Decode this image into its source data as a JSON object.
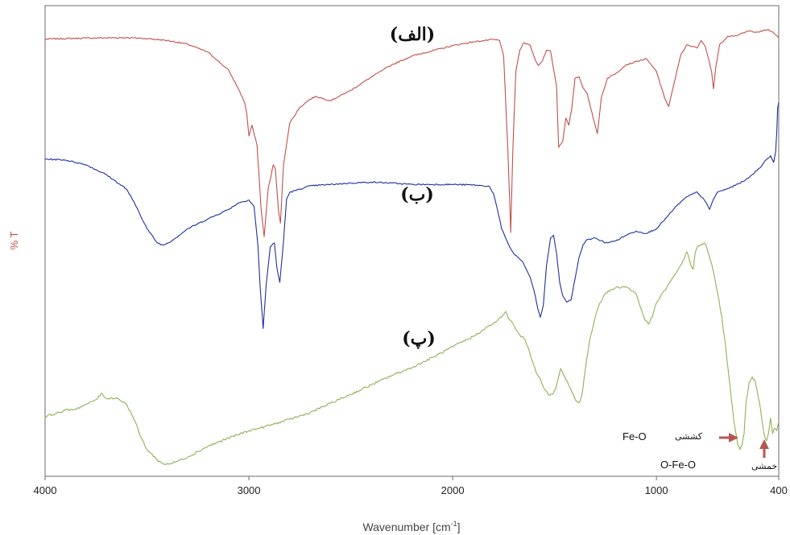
{
  "chart_data": {
    "type": "line",
    "title": "",
    "xlabel": "Wavenumber [cm",
    "xlabel_sup": "-1",
    "xlabel_end": "]",
    "ylabel": "% T",
    "xlim": [
      4000,
      400
    ],
    "ylim": [
      0,
      100
    ],
    "x_reversed": true,
    "grid": false,
    "x_ticks": [
      {
        "value": 4000,
        "label": "4000"
      },
      {
        "value": 3000,
        "label": "3000"
      },
      {
        "value": 2000,
        "label": "2000"
      },
      {
        "value": 1000,
        "label": "1000"
      },
      {
        "value": 400,
        "label": "400"
      }
    ],
    "series": [
      {
        "tag": "(الف)",
        "color": "#c0504d",
        "points": [
          [
            4000,
            92.9
          ],
          [
            3800,
            93.1
          ],
          [
            3600,
            93.2
          ],
          [
            3500,
            93.0
          ],
          [
            3400,
            92.6
          ],
          [
            3300,
            91.8
          ],
          [
            3200,
            90.1
          ],
          [
            3100,
            86.3
          ],
          [
            3050,
            82.2
          ],
          [
            3020,
            79.3
          ],
          [
            3010,
            76.9
          ],
          [
            3000,
            72.3
          ],
          [
            2985,
            74.6
          ],
          [
            2960,
            70.3
          ],
          [
            2940,
            56.8
          ],
          [
            2925,
            50.9
          ],
          [
            2905,
            61.2
          ],
          [
            2880,
            66.2
          ],
          [
            2870,
            65.3
          ],
          [
            2855,
            56.5
          ],
          [
            2845,
            53.8
          ],
          [
            2830,
            66.2
          ],
          [
            2800,
            75.0
          ],
          [
            2750,
            78.4
          ],
          [
            2700,
            80.1
          ],
          [
            2670,
            80.7
          ],
          [
            2600,
            79.8
          ],
          [
            2500,
            82.0
          ],
          [
            2400,
            84.8
          ],
          [
            2300,
            87.4
          ],
          [
            2200,
            89.3
          ],
          [
            2000,
            91.5
          ],
          [
            1900,
            92.3
          ],
          [
            1800,
            92.8
          ],
          [
            1770,
            92.6
          ],
          [
            1750,
            89.3
          ],
          [
            1730,
            70.3
          ],
          [
            1715,
            51.8
          ],
          [
            1705,
            69.0
          ],
          [
            1690,
            86.1
          ],
          [
            1670,
            90.6
          ],
          [
            1650,
            92.1
          ],
          [
            1620,
            91.6
          ],
          [
            1600,
            89.1
          ],
          [
            1580,
            87.3
          ],
          [
            1560,
            88.2
          ],
          [
            1540,
            90.5
          ],
          [
            1520,
            90.4
          ],
          [
            1490,
            82.8
          ],
          [
            1480,
            69.9
          ],
          [
            1460,
            71.2
          ],
          [
            1445,
            76.1
          ],
          [
            1430,
            74.6
          ],
          [
            1415,
            78.2
          ],
          [
            1400,
            84.5
          ],
          [
            1380,
            84.9
          ],
          [
            1360,
            82.5
          ],
          [
            1340,
            81.4
          ],
          [
            1310,
            76.0
          ],
          [
            1290,
            72.8
          ],
          [
            1270,
            80.6
          ],
          [
            1240,
            84.6
          ],
          [
            1200,
            85.6
          ],
          [
            1150,
            87.4
          ],
          [
            1100,
            88.1
          ],
          [
            1050,
            88.7
          ],
          [
            1000,
            86.0
          ],
          [
            960,
            80.4
          ],
          [
            940,
            78.6
          ],
          [
            920,
            82.3
          ],
          [
            880,
            89.6
          ],
          [
            850,
            91.7
          ],
          [
            800,
            91.0
          ],
          [
            780,
            92.6
          ],
          [
            760,
            91.2
          ],
          [
            740,
            88.0
          ],
          [
            730,
            86.1
          ],
          [
            720,
            82.3
          ],
          [
            710,
            86.6
          ],
          [
            690,
            91.7
          ],
          [
            650,
            93.5
          ],
          [
            600,
            93.7
          ],
          [
            550,
            94.6
          ],
          [
            500,
            94.4
          ],
          [
            450,
            94.9
          ],
          [
            420,
            94.0
          ],
          [
            400,
            93.2
          ]
        ]
      },
      {
        "tag": "(ب)",
        "color": "#1f2f9f",
        "points": [
          [
            4000,
            67.4
          ],
          [
            3900,
            67.2
          ],
          [
            3800,
            66.2
          ],
          [
            3700,
            64.1
          ],
          [
            3600,
            61.0
          ],
          [
            3550,
            57.1
          ],
          [
            3500,
            52.6
          ],
          [
            3450,
            49.6
          ],
          [
            3420,
            49.1
          ],
          [
            3380,
            50.0
          ],
          [
            3300,
            52.6
          ],
          [
            3200,
            54.7
          ],
          [
            3100,
            56.7
          ],
          [
            3050,
            58.1
          ],
          [
            3000,
            58.7
          ],
          [
            2975,
            57.4
          ],
          [
            2955,
            48.7
          ],
          [
            2945,
            40.4
          ],
          [
            2930,
            31.4
          ],
          [
            2915,
            40.8
          ],
          [
            2895,
            48.7
          ],
          [
            2875,
            49.6
          ],
          [
            2862,
            44.1
          ],
          [
            2848,
            41.2
          ],
          [
            2830,
            50.0
          ],
          [
            2815,
            58.9
          ],
          [
            2800,
            60.3
          ],
          [
            2700,
            61.7
          ],
          [
            2600,
            62.0
          ],
          [
            2500,
            62.3
          ],
          [
            2400,
            62.5
          ],
          [
            2300,
            62.3
          ],
          [
            2200,
            62.0
          ],
          [
            2000,
            62.0
          ],
          [
            1900,
            61.9
          ],
          [
            1820,
            61.6
          ],
          [
            1800,
            60.1
          ],
          [
            1780,
            56.6
          ],
          [
            1760,
            52.6
          ],
          [
            1740,
            50.6
          ],
          [
            1720,
            48.7
          ],
          [
            1700,
            47.3
          ],
          [
            1680,
            46.5
          ],
          [
            1660,
            45.8
          ],
          [
            1640,
            44.1
          ],
          [
            1620,
            42.3
          ],
          [
            1600,
            39.3
          ],
          [
            1580,
            35.2
          ],
          [
            1570,
            33.8
          ],
          [
            1555,
            36.3
          ],
          [
            1540,
            44.6
          ],
          [
            1520,
            50.6
          ],
          [
            1505,
            51.2
          ],
          [
            1490,
            47.3
          ],
          [
            1475,
            41.2
          ],
          [
            1460,
            38.4
          ],
          [
            1440,
            37.0
          ],
          [
            1420,
            37.4
          ],
          [
            1400,
            41.8
          ],
          [
            1380,
            46.5
          ],
          [
            1360,
            49.2
          ],
          [
            1340,
            50.3
          ],
          [
            1300,
            50.6
          ],
          [
            1250,
            49.6
          ],
          [
            1200,
            50.0
          ],
          [
            1150,
            51.2
          ],
          [
            1100,
            52.1
          ],
          [
            1050,
            51.6
          ],
          [
            1000,
            52.6
          ],
          [
            950,
            55.0
          ],
          [
            900,
            57.5
          ],
          [
            850,
            59.4
          ],
          [
            800,
            60.4
          ],
          [
            760,
            58.4
          ],
          [
            740,
            56.7
          ],
          [
            720,
            58.9
          ],
          [
            700,
            60.4
          ],
          [
            650,
            61.1
          ],
          [
            600,
            62.1
          ],
          [
            550,
            63.3
          ],
          [
            500,
            65.3
          ],
          [
            480,
            66.2
          ],
          [
            460,
            67.3
          ],
          [
            440,
            68.1
          ],
          [
            425,
            66.7
          ],
          [
            415,
            69.0
          ],
          [
            410,
            72.8
          ],
          [
            405,
            78.3
          ],
          [
            400,
            79.5
          ]
        ]
      },
      {
        "tag": "(پ)",
        "color": "#8fb155",
        "points": [
          [
            4000,
            12.7
          ],
          [
            3950,
            13.3
          ],
          [
            3900,
            14.0
          ],
          [
            3850,
            14.3
          ],
          [
            3800,
            15.2
          ],
          [
            3750,
            16.3
          ],
          [
            3720,
            17.6
          ],
          [
            3700,
            16.5
          ],
          [
            3650,
            16.7
          ],
          [
            3600,
            15.3
          ],
          [
            3560,
            11.8
          ],
          [
            3530,
            8.3
          ],
          [
            3500,
            5.7
          ],
          [
            3450,
            3.5
          ],
          [
            3420,
            2.6
          ],
          [
            3380,
            2.7
          ],
          [
            3300,
            4.1
          ],
          [
            3200,
            6.4
          ],
          [
            3100,
            8.1
          ],
          [
            3000,
            9.7
          ],
          [
            2950,
            10.2
          ],
          [
            2925,
            10.5
          ],
          [
            2900,
            10.8
          ],
          [
            2800,
            12.1
          ],
          [
            2700,
            13.5
          ],
          [
            2600,
            15.5
          ],
          [
            2500,
            17.4
          ],
          [
            2400,
            19.4
          ],
          [
            2300,
            21.4
          ],
          [
            2200,
            23.1
          ],
          [
            2100,
            25.2
          ],
          [
            2000,
            27.5
          ],
          [
            1900,
            29.7
          ],
          [
            1850,
            31.1
          ],
          [
            1800,
            32.5
          ],
          [
            1780,
            33.1
          ],
          [
            1760,
            33.8
          ],
          [
            1750,
            34.3
          ],
          [
            1740,
            35.0
          ],
          [
            1730,
            34.0
          ],
          [
            1720,
            33.2
          ],
          [
            1710,
            32.8
          ],
          [
            1690,
            31.2
          ],
          [
            1670,
            30.0
          ],
          [
            1650,
            29.3
          ],
          [
            1630,
            27.4
          ],
          [
            1610,
            24.6
          ],
          [
            1590,
            22.0
          ],
          [
            1570,
            20.8
          ],
          [
            1550,
            18.5
          ],
          [
            1530,
            17.3
          ],
          [
            1510,
            17.4
          ],
          [
            1495,
            18.5
          ],
          [
            1480,
            21.2
          ],
          [
            1470,
            22.9
          ],
          [
            1455,
            21.4
          ],
          [
            1440,
            20.4
          ],
          [
            1425,
            18.9
          ],
          [
            1410,
            17.5
          ],
          [
            1395,
            16.0
          ],
          [
            1380,
            15.6
          ],
          [
            1365,
            17.5
          ],
          [
            1350,
            22.4
          ],
          [
            1330,
            28.4
          ],
          [
            1300,
            34.0
          ],
          [
            1280,
            36.7
          ],
          [
            1250,
            38.9
          ],
          [
            1200,
            40.1
          ],
          [
            1150,
            40.3
          ],
          [
            1100,
            38.8
          ],
          [
            1060,
            33.6
          ],
          [
            1040,
            32.3
          ],
          [
            1020,
            33.9
          ],
          [
            1000,
            36.9
          ],
          [
            950,
            40.1
          ],
          [
            900,
            43.4
          ],
          [
            870,
            45.8
          ],
          [
            850,
            47.7
          ],
          [
            830,
            44.7
          ],
          [
            820,
            44.0
          ],
          [
            810,
            47.4
          ],
          [
            800,
            48.7
          ],
          [
            780,
            49.3
          ],
          [
            760,
            49.4
          ],
          [
            740,
            46.7
          ],
          [
            720,
            43.4
          ],
          [
            700,
            38.9
          ],
          [
            680,
            34.0
          ],
          [
            660,
            27.4
          ],
          [
            640,
            19.4
          ],
          [
            620,
            11.7
          ],
          [
            600,
            6.5
          ],
          [
            590,
            5.7
          ],
          [
            580,
            6.6
          ],
          [
            570,
            9.1
          ],
          [
            560,
            15.8
          ],
          [
            545,
            20.0
          ],
          [
            530,
            21.1
          ],
          [
            515,
            20.1
          ],
          [
            500,
            16.7
          ],
          [
            490,
            14.5
          ],
          [
            480,
            11.1
          ],
          [
            470,
            8.6
          ],
          [
            460,
            7.5
          ],
          [
            450,
            9.1
          ],
          [
            440,
            12.3
          ],
          [
            430,
            9.1
          ],
          [
            420,
            10.2
          ],
          [
            410,
            9.7
          ],
          [
            400,
            11.6
          ]
        ]
      }
    ],
    "annotations": [
      {
        "text_latin": "Fe-O",
        "text_fa": "کششی"
      },
      {
        "text_latin": "O-Fe-O",
        "text_fa": "خمشی"
      }
    ],
    "arrow_color": "#b65650"
  }
}
